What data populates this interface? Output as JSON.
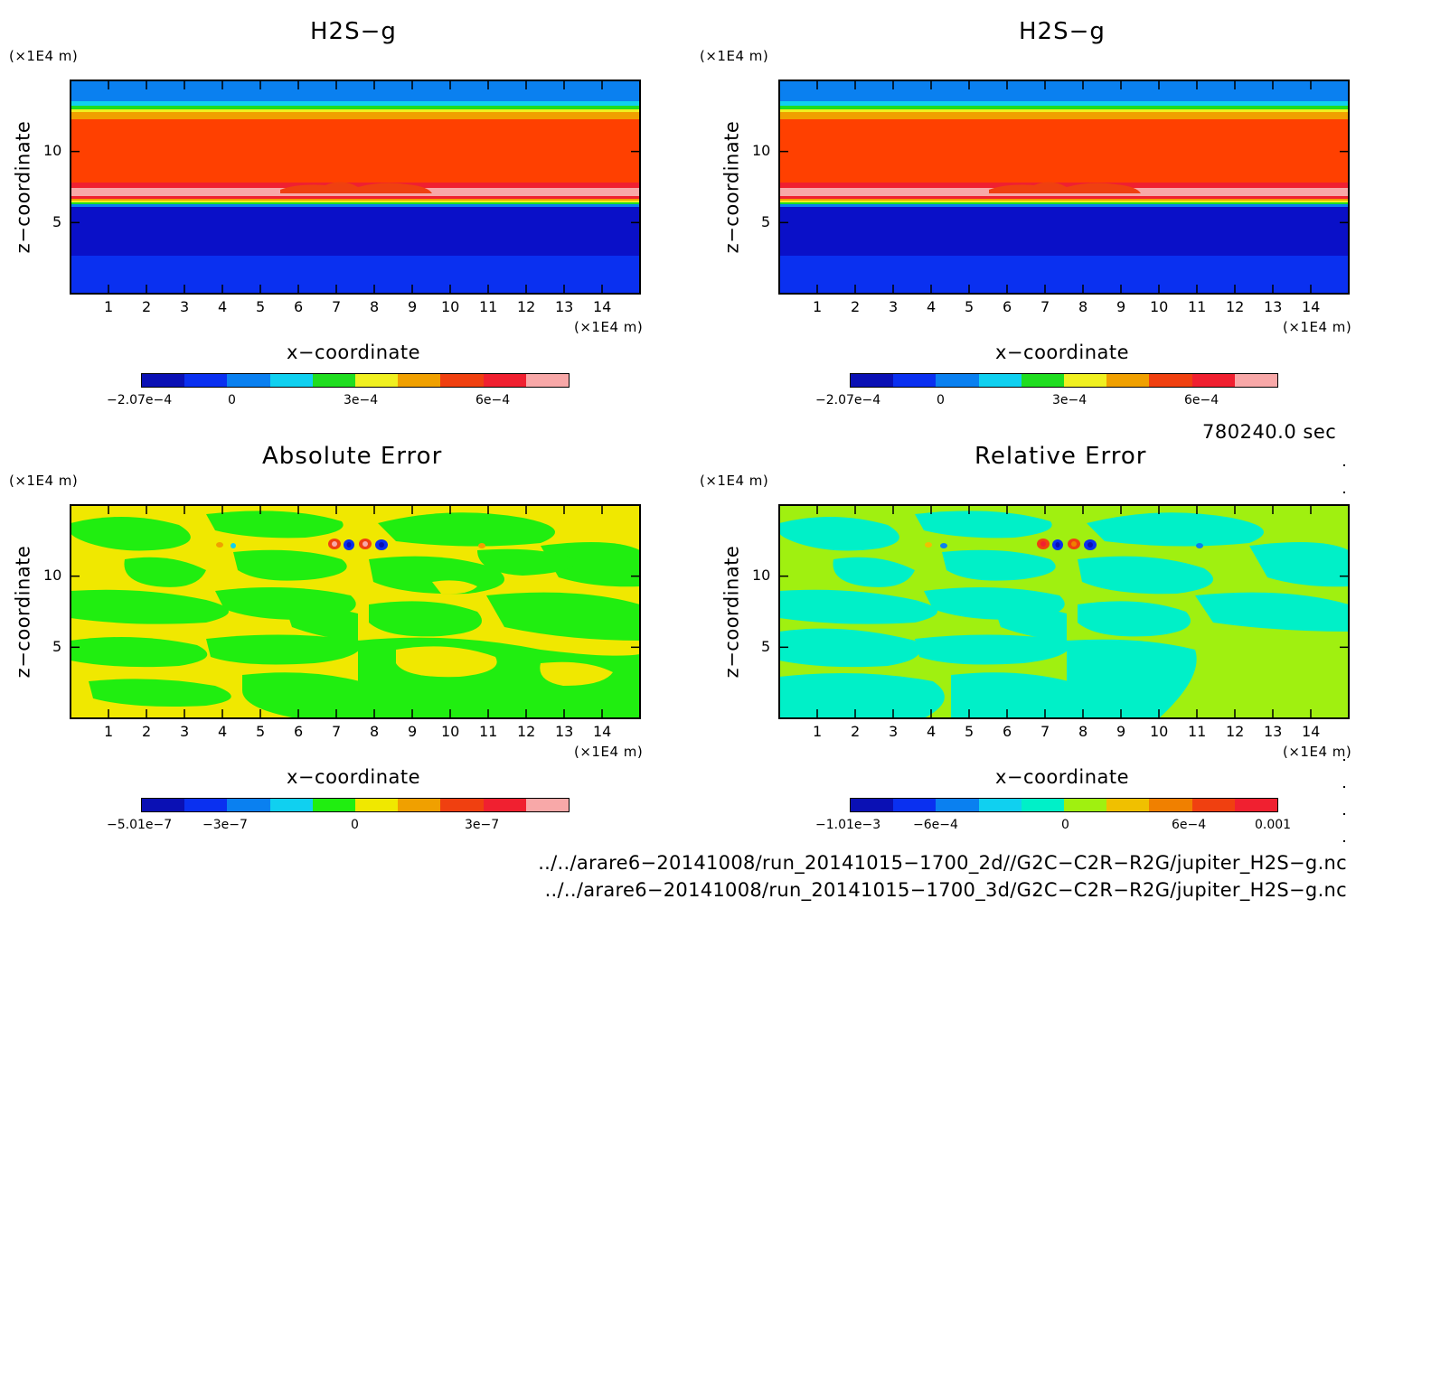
{
  "chart_data": [
    {
      "type": "heatmap",
      "title": "H2S−g",
      "xlabel": "x−coordinate",
      "ylabel": "z−coordinate",
      "x_unit": "(×1E4 m)",
      "y_unit": "(×1E4 m)",
      "x_ticks": [
        "1",
        "2",
        "3",
        "4",
        "5",
        "6",
        "7",
        "8",
        "9",
        "10",
        "11",
        "12",
        "13",
        "14"
      ],
      "y_ticks": [
        "5",
        "10"
      ],
      "xlim": [
        0,
        15
      ],
      "ylim": [
        0,
        15
      ],
      "colorbar": {
        "colors": [
          "#0a10b4",
          "#0a30f0",
          "#0a80f0",
          "#10d0f0",
          "#20dd20",
          "#f0f020",
          "#f0a000",
          "#f04010",
          "#f02030",
          "#f8a8a8"
        ],
        "tick_labels": [
          "−2.07e−4",
          "0",
          "3e−4",
          "6e−4"
        ]
      }
    },
    {
      "type": "heatmap",
      "title": "H2S−g",
      "xlabel": "x−coordinate",
      "ylabel": "z−coordinate",
      "x_unit": "(×1E4 m)",
      "y_unit": "(×1E4 m)",
      "x_ticks": [
        "1",
        "2",
        "3",
        "4",
        "5",
        "6",
        "7",
        "8",
        "9",
        "10",
        "11",
        "12",
        "13",
        "14"
      ],
      "y_ticks": [
        "5",
        "10"
      ],
      "xlim": [
        0,
        15
      ],
      "ylim": [
        0,
        15
      ],
      "colorbar": {
        "colors": [
          "#0a10b4",
          "#0a30f0",
          "#0a80f0",
          "#10d0f0",
          "#20dd20",
          "#f0f020",
          "#f0a000",
          "#f04010",
          "#f02030",
          "#f8a8a8"
        ],
        "tick_labels": [
          "−2.07e−4",
          "0",
          "3e−4",
          "6e−4"
        ]
      }
    },
    {
      "type": "heatmap",
      "title": "Absolute Error",
      "xlabel": "x−coordinate",
      "ylabel": "z−coordinate",
      "x_unit": "(×1E4 m)",
      "y_unit": "(×1E4 m)",
      "x_ticks": [
        "1",
        "2",
        "3",
        "4",
        "5",
        "6",
        "7",
        "8",
        "9",
        "10",
        "11",
        "12",
        "13",
        "14"
      ],
      "y_ticks": [
        "5",
        "10"
      ],
      "xlim": [
        0,
        15
      ],
      "ylim": [
        0,
        15
      ],
      "colorbar": {
        "colors": [
          "#0a10b4",
          "#0a30f0",
          "#0a80f0",
          "#10d0f0",
          "#20ee10",
          "#f0e800",
          "#f0a000",
          "#f04010",
          "#f02030",
          "#f8a8a8"
        ],
        "tick_labels": [
          "−5.01e−7",
          "−3e−7",
          "0",
          "3e−7"
        ]
      }
    },
    {
      "type": "heatmap",
      "title": "Relative Error",
      "xlabel": "x−coordinate",
      "ylabel": "z−coordinate",
      "x_unit": "(×1E4 m)",
      "y_unit": "(×1E4 m)",
      "x_ticks": [
        "1",
        "2",
        "3",
        "4",
        "5",
        "6",
        "7",
        "8",
        "9",
        "10",
        "11",
        "12",
        "13",
        "14"
      ],
      "y_ticks": [
        "5",
        "10"
      ],
      "xlim": [
        0,
        15
      ],
      "ylim": [
        0,
        15
      ],
      "colorbar": {
        "colors": [
          "#0a10b4",
          "#0a30f0",
          "#0a80f0",
          "#10d0f0",
          "#00f0c8",
          "#a0f010",
          "#f0c000",
          "#f08000",
          "#f04010",
          "#f02030"
        ],
        "tick_labels": [
          "−1.01e−3",
          "−6e−4",
          "0",
          "6e−4",
          "0.001"
        ]
      }
    }
  ],
  "time_label": "780240.0 sec",
  "footer": {
    "line1": "../../arare6−20141008/run_20141015−1700_2d//G2C−C2R−R2G/jupiter_H2S−g.nc",
    "line2": "../../arare6−20141008/run_20141015−1700_3d/G2C−C2R−R2G/jupiter_H2S−g.nc"
  }
}
